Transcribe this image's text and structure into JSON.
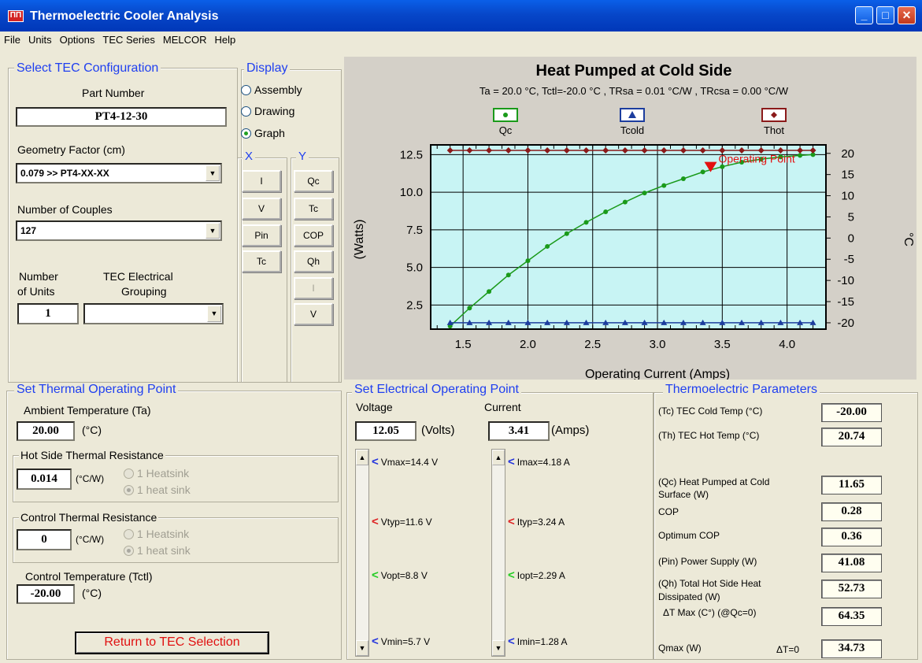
{
  "window": {
    "title": "Thermoelectric Cooler Analysis",
    "icon_text": "ΠΠ",
    "min_label": "_",
    "max_label": "□",
    "close_label": "✕"
  },
  "menu": [
    "File",
    "Units",
    "Options",
    "TEC Series",
    "MELCOR",
    "Help"
  ],
  "config": {
    "heading": "Select TEC Configuration",
    "part_number_label": "Part Number",
    "part_number": "PT4-12-30",
    "geometry_label": "Geometry Factor (cm)",
    "geometry_value": "0.079 >> PT4-XX-XX",
    "couples_label": "Number of Couples",
    "couples_value": "127",
    "units_label_1": "Number",
    "units_label_2": "of Units",
    "units_value": "1",
    "grouping_label_1": "TEC Electrical",
    "grouping_label_2": "Grouping",
    "grouping_value": ""
  },
  "display": {
    "heading": "Display",
    "options": [
      "Assembly",
      "Drawing",
      "Graph"
    ],
    "selected": "Graph",
    "x_heading": "X",
    "y_heading": "Y",
    "x_buttons": [
      "I",
      "V",
      "Pin",
      "Tc"
    ],
    "y_buttons": [
      "Qc",
      "Tc",
      "COP",
      "Qh",
      "I",
      "V"
    ]
  },
  "chart_data": {
    "type": "line",
    "title": "Heat Pumped at Cold Side",
    "subtitle": "Ta = 20.0 °C, Tctl=-20.0 °C , TRsa = 0.01 °C/W , TRcsa = 0.00 °C/W",
    "xlabel": "Operating Current (Amps)",
    "ylabel": "(Watts)",
    "y2label": "°C",
    "xlim": [
      1.25,
      4.3
    ],
    "ylim": [
      0.9,
      13.15
    ],
    "y2lim": [
      -21.5,
      22
    ],
    "x_ticks": [
      "1.5",
      "2.0",
      "2.5",
      "3.0",
      "3.5",
      "4.0"
    ],
    "y_ticks": [
      "2.5",
      "5.0",
      "7.5",
      "10.0",
      "12.5"
    ],
    "y2_ticks": [
      "20",
      "15",
      "10",
      "5",
      "0",
      "-5",
      "-10",
      "-15",
      "-20"
    ],
    "legend": [
      "Qc",
      "Tcold",
      "Thot"
    ],
    "annotation": "Operating Point",
    "operating_point": {
      "x": 3.41,
      "y": 11.65
    },
    "x": [
      1.4,
      1.55,
      1.7,
      1.85,
      2.0,
      2.15,
      2.3,
      2.45,
      2.6,
      2.75,
      2.9,
      3.05,
      3.2,
      3.35,
      3.5,
      3.65,
      3.8,
      3.95,
      4.1,
      4.2
    ],
    "series": [
      {
        "name": "Qc",
        "axis": "left",
        "color": "#1a9a1a",
        "values": [
          1.1,
          2.3,
          3.4,
          4.5,
          5.45,
          6.4,
          7.25,
          8.0,
          8.7,
          9.35,
          9.95,
          10.45,
          10.9,
          11.35,
          11.7,
          12.0,
          12.2,
          12.35,
          12.45,
          12.5
        ]
      },
      {
        "name": "Tcold",
        "axis": "right",
        "color": "#1c3d9e",
        "values": [
          -20,
          -20,
          -20,
          -20,
          -20,
          -20,
          -20,
          -20,
          -20,
          -20,
          -20,
          -20,
          -20,
          -20,
          -20,
          -20,
          -20,
          -20,
          -20,
          -20
        ]
      },
      {
        "name": "Thot",
        "axis": "right",
        "color": "#8b1a1a",
        "values": [
          20.7,
          20.7,
          20.7,
          20.7,
          20.7,
          20.7,
          20.7,
          20.7,
          20.7,
          20.7,
          20.7,
          20.7,
          20.7,
          20.7,
          20.7,
          20.7,
          20.7,
          20.7,
          20.7,
          20.7
        ]
      }
    ]
  },
  "thermal": {
    "heading": "Set Thermal Operating Point",
    "ambient_label": "Ambient Temperature (Ta)",
    "ambient_value": "20.00",
    "ambient_unit": "(°C)",
    "hot_heading": "Hot Side Thermal Resistance",
    "hot_value": "0.014",
    "hot_unit": "(°C/W)",
    "hot_opt1": "1 Heatsink",
    "hot_opt2": "1 heat sink",
    "ctrl_heading": "Control Thermal Resistance",
    "ctrl_value": "0",
    "ctrl_unit": "(°C/W)",
    "ctrl_opt1": "1 Heatsink",
    "ctrl_opt2": "1 heat sink",
    "tctl_label": "Control Temperature (Tctl)",
    "tctl_value": "-20.00",
    "tctl_unit": "(°C)",
    "return_button": "Return to TEC Selection"
  },
  "electrical": {
    "heading": "Set Electrical Operating Point",
    "voltage_label": "Voltage",
    "voltage_value": "12.05",
    "voltage_unit": "(Volts)",
    "current_label": "Current",
    "current_value": "3.41",
    "current_unit": "(Amps)",
    "vmarkers": [
      "Vmax=14.4 V",
      "Vtyp=11.6 V",
      "Vopt=8.8 V",
      "Vmin=5.7 V"
    ],
    "imarkers": [
      "Imax=4.18 A",
      "Ityp=3.24 A",
      "Iopt=2.29 A",
      "Imin=1.28 A"
    ],
    "marker_colors": [
      "#2233dd",
      "#dd2222",
      "#22cc22",
      "#2233dd"
    ]
  },
  "params": {
    "heading": "Thermoelectric Parameters",
    "tc_label": "(Tc) TEC Cold Temp (°C)",
    "tc_value": "-20.00",
    "th_label": "(Th) TEC Hot Temp (°C)",
    "th_value": "20.74",
    "qc_label_1": "(Qc) Heat Pumped at Cold",
    "qc_label_2": "Surface (W)",
    "qc_value": "11.65",
    "cop_label": "COP",
    "cop_value": "0.28",
    "optcop_label": "Optimum COP",
    "optcop_value": "0.36",
    "pin_label": "(Pin) Power Supply (W)",
    "pin_value": "41.08",
    "qh_label_1": "(Qh) Total Hot Side Heat",
    "qh_label_2": "Dissipated (W)",
    "qh_value": "52.73",
    "dtmax_label": "ΔT Max (C°) (@Qc=0)",
    "dtmax_value": "64.35",
    "qmax_label": "Qmax (W)",
    "qmax_sub": "ΔT=0",
    "qmax_value": "34.73"
  }
}
